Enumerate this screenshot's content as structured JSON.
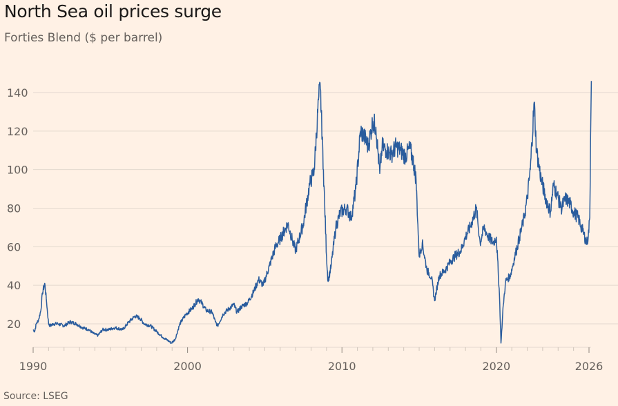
{
  "title": "North Sea oil prices surge",
  "subtitle": "Forties Blend ($ per barrel)",
  "source": "Source: LSEG",
  "colors": {
    "line": "#2a5c9d",
    "background": "#fff1e5"
  },
  "chart_data": {
    "type": "line",
    "title": "North Sea oil prices surge",
    "subtitle": "Forties Blend ($ per barrel)",
    "xlabel": "",
    "ylabel": "$ per barrel",
    "xlim": [
      1990,
      2026.2
    ],
    "ylim": [
      5,
      150
    ],
    "y_ticks": [
      20,
      40,
      60,
      80,
      100,
      120,
      140
    ],
    "x_ticks": [
      1990,
      2000,
      2010,
      2020,
      2026
    ],
    "grid": true,
    "series": [
      {
        "name": "Forties Blend",
        "x": [
          1990.0,
          1990.1,
          1990.2,
          1990.35,
          1990.5,
          1990.6,
          1990.75,
          1990.85,
          1991.0,
          1991.1,
          1991.3,
          1991.6,
          1992.0,
          1992.4,
          1992.8,
          1993.2,
          1993.6,
          1993.9,
          1994.2,
          1994.5,
          1994.9,
          1995.3,
          1995.8,
          1996.2,
          1996.6,
          1996.9,
          1997.2,
          1997.6,
          1998.0,
          1998.4,
          1998.8,
          1998.95,
          1999.2,
          1999.5,
          1999.9,
          2000.3,
          2000.7,
          2000.9,
          2001.2,
          2001.6,
          2001.8,
          2001.95,
          2002.3,
          2002.7,
          2003.0,
          2003.2,
          2003.5,
          2003.9,
          2004.3,
          2004.6,
          2004.9,
          2005.3,
          2005.7,
          2006.0,
          2006.5,
          2006.8,
          2007.0,
          2007.5,
          2007.9,
          2008.2,
          2008.5,
          2008.6,
          2008.8,
          2009.0,
          2009.1,
          2009.3,
          2009.6,
          2009.9,
          2010.3,
          2010.6,
          2010.9,
          2011.2,
          2011.4,
          2011.7,
          2012.0,
          2012.2,
          2012.45,
          2012.6,
          2012.9,
          2013.2,
          2013.5,
          2013.8,
          2014.1,
          2014.4,
          2014.6,
          2014.8,
          2015.0,
          2015.2,
          2015.5,
          2015.8,
          2016.0,
          2016.3,
          2016.7,
          2017.0,
          2017.3,
          2017.7,
          2018.0,
          2018.3,
          2018.7,
          2018.95,
          2019.2,
          2019.5,
          2019.8,
          2020.0,
          2020.2,
          2020.3,
          2020.45,
          2020.6,
          2020.9,
          2021.2,
          2021.5,
          2021.8,
          2022.0,
          2022.2,
          2022.45,
          2022.6,
          2022.9,
          2023.2,
          2023.5,
          2023.7,
          2023.9,
          2024.2,
          2024.5,
          2024.8,
          2025.0,
          2025.3,
          2025.6,
          2025.85,
          2025.95,
          2026.05,
          2026.1,
          2026.15
        ],
        "values": [
          17,
          16,
          20,
          22,
          27,
          36,
          41,
          33,
          20,
          19,
          20,
          20,
          19,
          21,
          20,
          18,
          17,
          15,
          14,
          17,
          17,
          18,
          17,
          21,
          24,
          23,
          20,
          19,
          16,
          13,
          11,
          10,
          12,
          20,
          25,
          28,
          33,
          31,
          27,
          26,
          21,
          19,
          25,
          28,
          30,
          26,
          29,
          31,
          37,
          43,
          40,
          50,
          60,
          64,
          72,
          63,
          58,
          72,
          92,
          100,
          138,
          142,
          100,
          55,
          42,
          50,
          70,
          78,
          80,
          75,
          90,
          120,
          118,
          112,
          125,
          122,
          98,
          112,
          110,
          108,
          112,
          110,
          107,
          111,
          105,
          95,
          55,
          62,
          48,
          44,
          32,
          45,
          48,
          52,
          55,
          58,
          65,
          70,
          80,
          62,
          70,
          65,
          62,
          65,
          35,
          10,
          30,
          42,
          45,
          55,
          65,
          75,
          85,
          100,
          135,
          110,
          95,
          85,
          78,
          92,
          88,
          80,
          85,
          82,
          78,
          75,
          68,
          62,
          65,
          75,
          115,
          146
        ]
      }
    ]
  }
}
